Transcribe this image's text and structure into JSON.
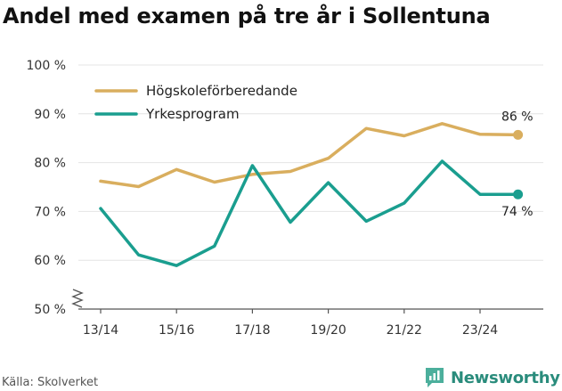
{
  "chart_data": {
    "type": "line",
    "title": "Andel med examen på tre år i Sollentuna",
    "xlabel": "",
    "ylabel": "",
    "ylim": [
      50,
      100
    ],
    "yticks": [
      50,
      60,
      70,
      80,
      90,
      100
    ],
    "ytick_labels": [
      "50 %",
      "60 %",
      "70 %",
      "80 %",
      "90 %",
      "100 %"
    ],
    "categories": [
      "13/14",
      "14/15",
      "15/16",
      "16/17",
      "17/18",
      "18/19",
      "19/20",
      "20/21",
      "21/22",
      "22/23",
      "23/24",
      "24/25"
    ],
    "xtick_labels": [
      "13/14",
      "15/16",
      "17/18",
      "19/20",
      "21/22",
      "23/24"
    ],
    "series": [
      {
        "name": "Högskoleförberedande",
        "color": "#d9ae5e",
        "values": [
          76.2,
          75.1,
          78.6,
          76.0,
          77.6,
          78.2,
          80.9,
          87.0,
          85.5,
          88.0,
          85.8,
          85.7
        ],
        "end_label": "86 %"
      },
      {
        "name": "Yrkesprogram",
        "color": "#1a9e8f",
        "values": [
          70.6,
          61.1,
          58.9,
          62.9,
          79.4,
          67.8,
          75.9,
          68.0,
          71.7,
          80.3,
          73.5,
          73.5
        ],
        "end_label": "74 %"
      }
    ],
    "legend_position": "top-left",
    "grid": true,
    "axis_break": true
  },
  "footer": {
    "source": "Källa: Skolverket",
    "brand": "Newsworthy"
  }
}
